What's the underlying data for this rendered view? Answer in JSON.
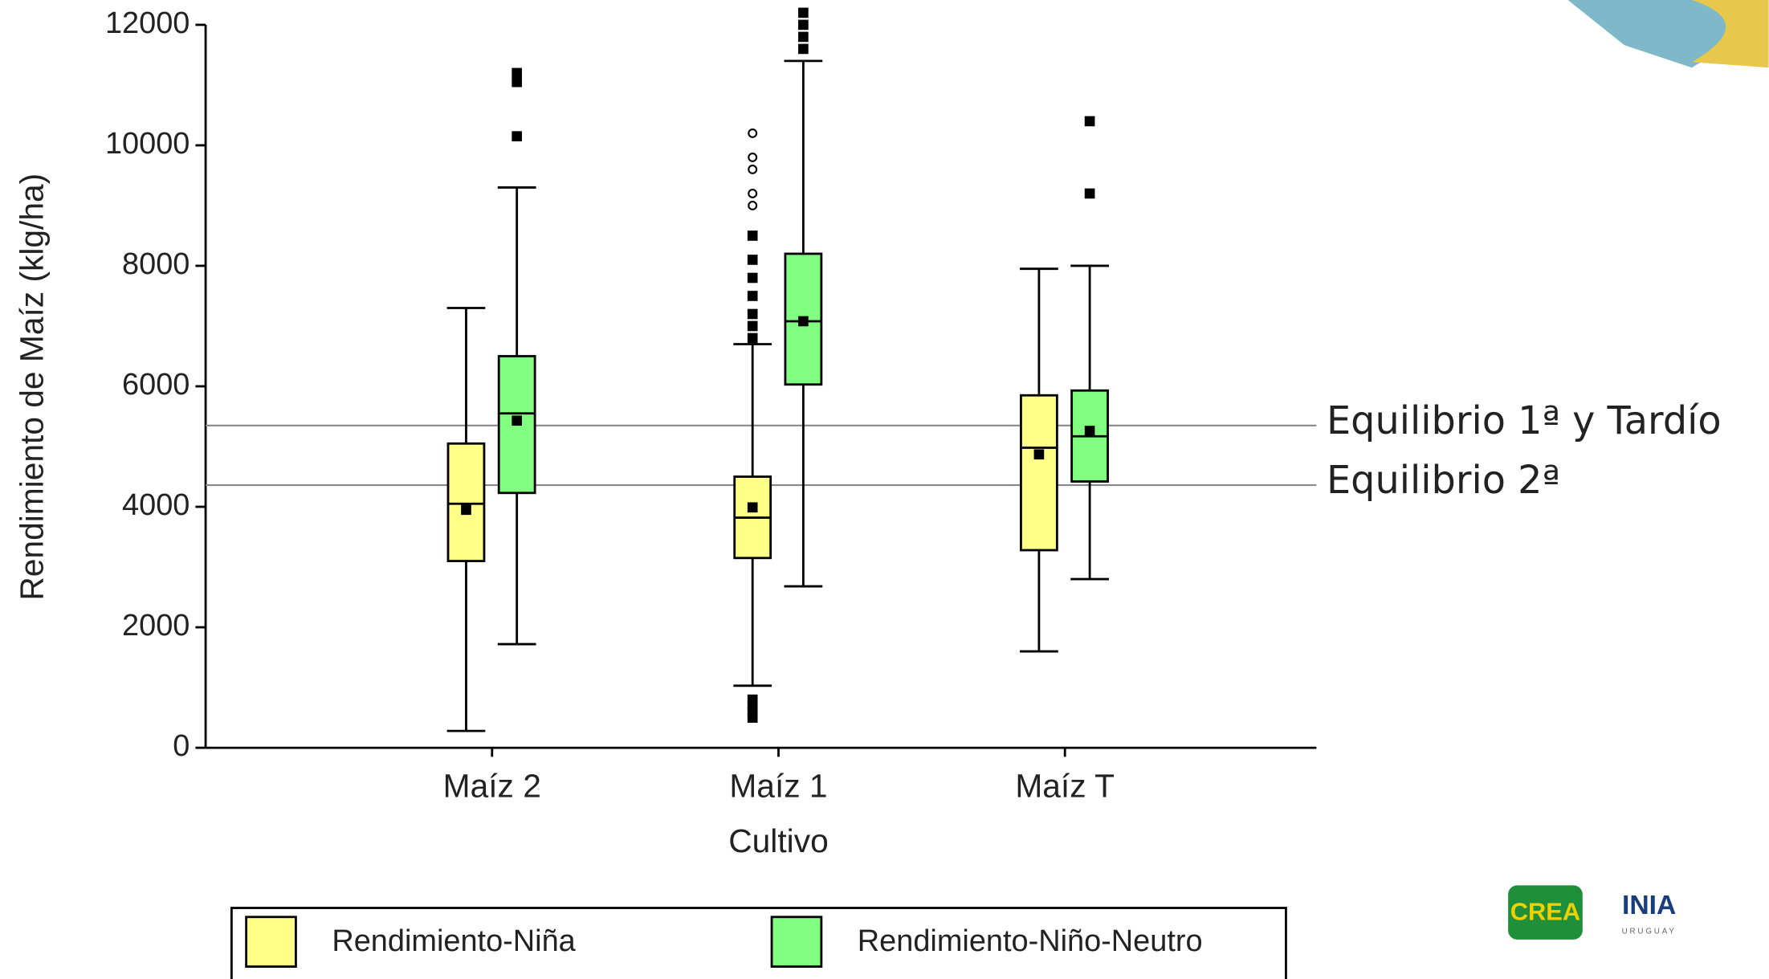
{
  "chart_data": {
    "type": "box",
    "y_label": "Rendimiento de Maíz (klg/ha)",
    "x_label": "Cultivo",
    "categories": [
      "Maíz 2",
      "Maíz 1",
      "Maíz T"
    ],
    "ylim": [
      0,
      12000
    ],
    "yticks": [
      0,
      2000,
      4000,
      6000,
      8000,
      10000,
      12000
    ],
    "series": [
      {
        "name": "Rendimiento-Niña",
        "color": "#ffff88",
        "boxes": [
          {
            "whislo": 280,
            "q1": 3100,
            "med": 4050,
            "mean": 3950,
            "q3": 5050,
            "whishi": 7300,
            "outliers": [],
            "far_outliers": []
          },
          {
            "whislo": 1030,
            "q1": 3150,
            "med": 3820,
            "mean": 3990,
            "q3": 4500,
            "whishi": 6700,
            "outliers": [
              500,
              600,
              700,
              800,
              6800,
              7000,
              7200,
              7500,
              7800,
              8100,
              8500
            ],
            "far_outliers": [
              9000,
              9200,
              9600,
              9800,
              10200
            ]
          },
          {
            "whislo": 1600,
            "q1": 3280,
            "med": 4980,
            "mean": 4870,
            "q3": 5850,
            "whishi": 7950,
            "outliers": [],
            "far_outliers": []
          }
        ]
      },
      {
        "name": "Rendimiento-Niño-Neutro",
        "color": "#80ff80",
        "boxes": [
          {
            "whislo": 1720,
            "q1": 4230,
            "med": 5550,
            "mean": 5430,
            "q3": 6500,
            "whishi": 9300,
            "outliers": [
              10150,
              11050,
              11200
            ],
            "far_outliers": []
          },
          {
            "whislo": 2680,
            "q1": 6030,
            "med": 7080,
            "mean": 7080,
            "q3": 8200,
            "whishi": 11400,
            "outliers": [
              11600,
              11800,
              12000,
              12200
            ],
            "far_outliers": []
          },
          {
            "whislo": 2800,
            "q1": 4420,
            "med": 5170,
            "mean": 5260,
            "q3": 5930,
            "whishi": 8000,
            "outliers": [
              9200,
              10400
            ],
            "far_outliers": []
          }
        ]
      }
    ],
    "reference_lines": [
      {
        "label": "Equilibrio 1ª y Tardío",
        "value": 5350
      },
      {
        "label": "Equilibrio 2ª",
        "value": 4360
      }
    ]
  },
  "logos": {
    "crea": "CREA",
    "inia": "INIA",
    "inia_sub": "URUGUAY"
  }
}
